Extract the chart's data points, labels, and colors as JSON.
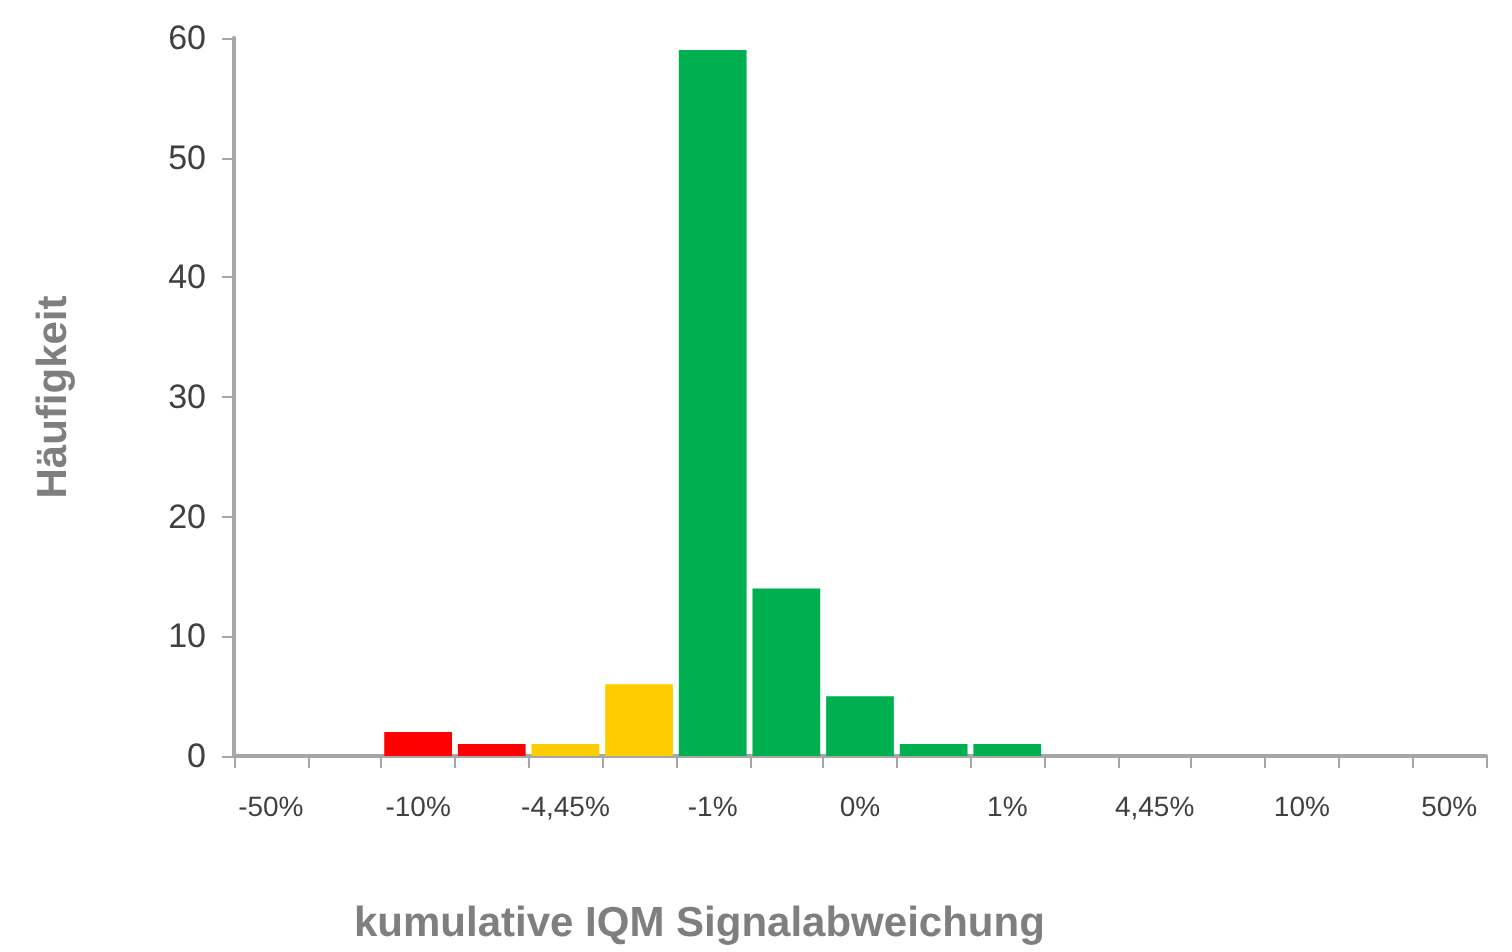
{
  "chart_data": {
    "type": "bar",
    "xlabel": "kumulative IQM Signalabweichung",
    "ylabel": "Häufigkeit",
    "categories": [
      "-50%",
      null,
      "-10%",
      null,
      "-4,45%",
      null,
      "-1%",
      null,
      "0%",
      null,
      "1%",
      null,
      "4,45%",
      null,
      "10%",
      null,
      "50%"
    ],
    "values": [
      0,
      0,
      2,
      1,
      1,
      6,
      59,
      14,
      5,
      1,
      1,
      0,
      0,
      0,
      0,
      0,
      0
    ],
    "colors": [
      "#ff0000",
      "#ff0000",
      "#ff0000",
      "#ff0000",
      "#ffcc00",
      "#ffcc00",
      "#00b050",
      "#00b050",
      "#00b050",
      "#00b050",
      "#00b050",
      "#ffcc00",
      "#ffcc00",
      "#ff0000",
      "#ff0000",
      "#ff0000",
      "#ff0000"
    ],
    "ylim": [
      0,
      60
    ],
    "yticks": [
      0,
      10,
      20,
      30,
      40,
      50,
      60
    ]
  }
}
